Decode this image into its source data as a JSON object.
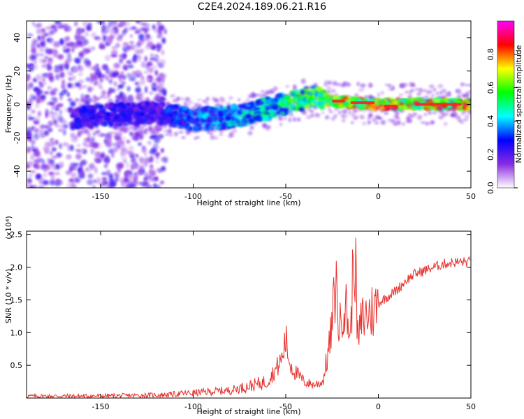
{
  "title": "C2E4.2024.189.06.21.R16",
  "chart_data": [
    {
      "type": "heatmap",
      "xlabel": "Height of straight line (km)",
      "ylabel": "Frequency (Hz)",
      "xlim": [
        -190,
        50
      ],
      "ylim": [
        -50,
        50
      ],
      "xticks": [
        -150,
        -100,
        -50,
        0,
        50
      ],
      "yticks": [
        -40,
        -20,
        0,
        20,
        40
      ],
      "colorbar": {
        "label": "Normalized spectral amplitude",
        "range": [
          0,
          1
        ],
        "ticks": [
          "0.0",
          "0.2",
          "0.4",
          "0.6",
          "0.8"
        ],
        "colors": [
          "#ffffff",
          "#8a2be2",
          "#0000ff",
          "#00ffff",
          "#00ff00",
          "#ffff00",
          "#ff0000",
          "#ff00ff"
        ]
      },
      "ridge": {
        "description_x": [
          -165,
          -140,
          -120,
          -100,
          -85,
          -70,
          -55,
          -45,
          -35,
          -25,
          -15,
          0,
          20,
          50
        ],
        "freq": [
          -8,
          -6,
          -5,
          -9,
          -8,
          -6,
          -1,
          2,
          5,
          2,
          1,
          0,
          0,
          0
        ],
        "amplitude": [
          0.3,
          0.3,
          0.3,
          0.4,
          0.45,
          0.5,
          0.55,
          0.6,
          0.7,
          0.8,
          0.85,
          0.9,
          0.9,
          0.9
        ]
      },
      "grid": false
    },
    {
      "type": "line",
      "xlabel": "Height of straight line (km)",
      "ylabel": "SNR (10 * v/v)",
      "yscale_label": "(x10⁴)",
      "xlim": [
        -190,
        50
      ],
      "ylim": [
        0,
        2.55
      ],
      "xticks": [
        -150,
        -100,
        -50,
        0,
        50
      ],
      "yticks": [
        "0.5",
        "1.0",
        "1.5",
        "2.0",
        "2.5"
      ],
      "color": "#e8302c",
      "x": [
        -190,
        -160,
        -130,
        -115,
        -100,
        -80,
        -70,
        -60,
        -55,
        -52,
        -50,
        -48,
        -45,
        -40,
        -35,
        -30,
        -27,
        -25,
        -23,
        -21,
        -19,
        -17,
        -15,
        -13,
        -11,
        -9,
        -7,
        -5,
        -2,
        0,
        5,
        10,
        15,
        20,
        25,
        30,
        35,
        40,
        45,
        50
      ],
      "y": [
        0.03,
        0.03,
        0.04,
        0.05,
        0.08,
        0.12,
        0.18,
        0.25,
        0.45,
        0.6,
        0.9,
        0.55,
        0.4,
        0.25,
        0.2,
        0.25,
        0.7,
        1.1,
        1.8,
        1.0,
        1.5,
        1.3,
        0.9,
        2.5,
        0.8,
        1.2,
        1.25,
        1.3,
        1.35,
        1.45,
        1.55,
        1.65,
        1.8,
        1.9,
        1.95,
        2.0,
        2.05,
        2.07,
        2.08,
        2.08
      ]
    }
  ]
}
